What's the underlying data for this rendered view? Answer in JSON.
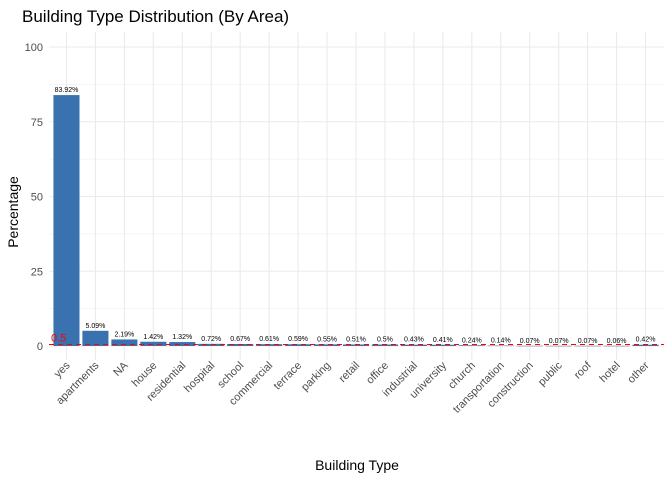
{
  "chart_data": {
    "type": "bar",
    "title": "Building Type Distribution (By Area)",
    "xlabel": "Building Type",
    "ylabel": "Percentage",
    "ylim": [
      0,
      100
    ],
    "yticks": [
      0,
      25,
      50,
      75,
      100
    ],
    "grid": true,
    "legend": "none",
    "categories": [
      "yes",
      "apartments",
      "NA",
      "house",
      "residential",
      "hospital",
      "school",
      "commercial",
      "terrace",
      "parking",
      "retail",
      "office",
      "industrial",
      "university",
      "church",
      "transportation",
      "construction",
      "public",
      "roof",
      "hotel",
      "other"
    ],
    "values": [
      83.92,
      5.09,
      2.19,
      1.42,
      1.32,
      0.72,
      0.67,
      0.61,
      0.59,
      0.55,
      0.51,
      0.5,
      0.43,
      0.41,
      0.24,
      0.14,
      0.07,
      0.07,
      0.07,
      0.06,
      0.42
    ],
    "value_labels": [
      "83.92%",
      "5.09%",
      "2.19%",
      "1.42%",
      "1.32%",
      "0.72%",
      "0.67%",
      "0.61%",
      "0.59%",
      "0.55%",
      "0.51%",
      "0.5%",
      "0.43%",
      "0.41%",
      "0.24%",
      "0.14%",
      "0.07%",
      "0.07%",
      "0.07%",
      "0.06%",
      "0.42%"
    ],
    "reference_line": {
      "value": 0.5,
      "label": "0.5",
      "color": "#ff0000",
      "style": "dashed"
    },
    "colors": {
      "bar": "#3a72b0",
      "grid": "#ebebeb",
      "reference": "#ff0000"
    }
  }
}
